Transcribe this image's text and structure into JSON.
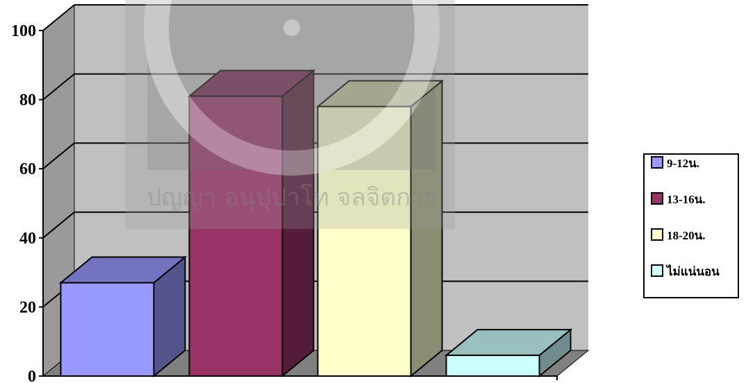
{
  "chart_data": {
    "type": "bar",
    "bar_style": "3d",
    "title": "",
    "xlabel": "",
    "ylabel": "",
    "ylim": [
      0,
      100
    ],
    "ytick_step": 20,
    "ytick_labels": [
      "0",
      "20",
      "40",
      "60",
      "80",
      "100"
    ],
    "grid": true,
    "legend_position": "right",
    "series": [
      {
        "name": "9-12น.",
        "value": 27,
        "color": "#9999ff"
      },
      {
        "name": "13-16น.",
        "value": 81,
        "color": "#993366"
      },
      {
        "name": "18-20น.",
        "value": 78,
        "color": "#ffffcc"
      },
      {
        "name": "ไม่แน่นอน",
        "value": 6,
        "color": "#ccffff"
      }
    ]
  },
  "watermark": {
    "text": "ปญญา อนุปุปาโท จลจิตการ"
  }
}
